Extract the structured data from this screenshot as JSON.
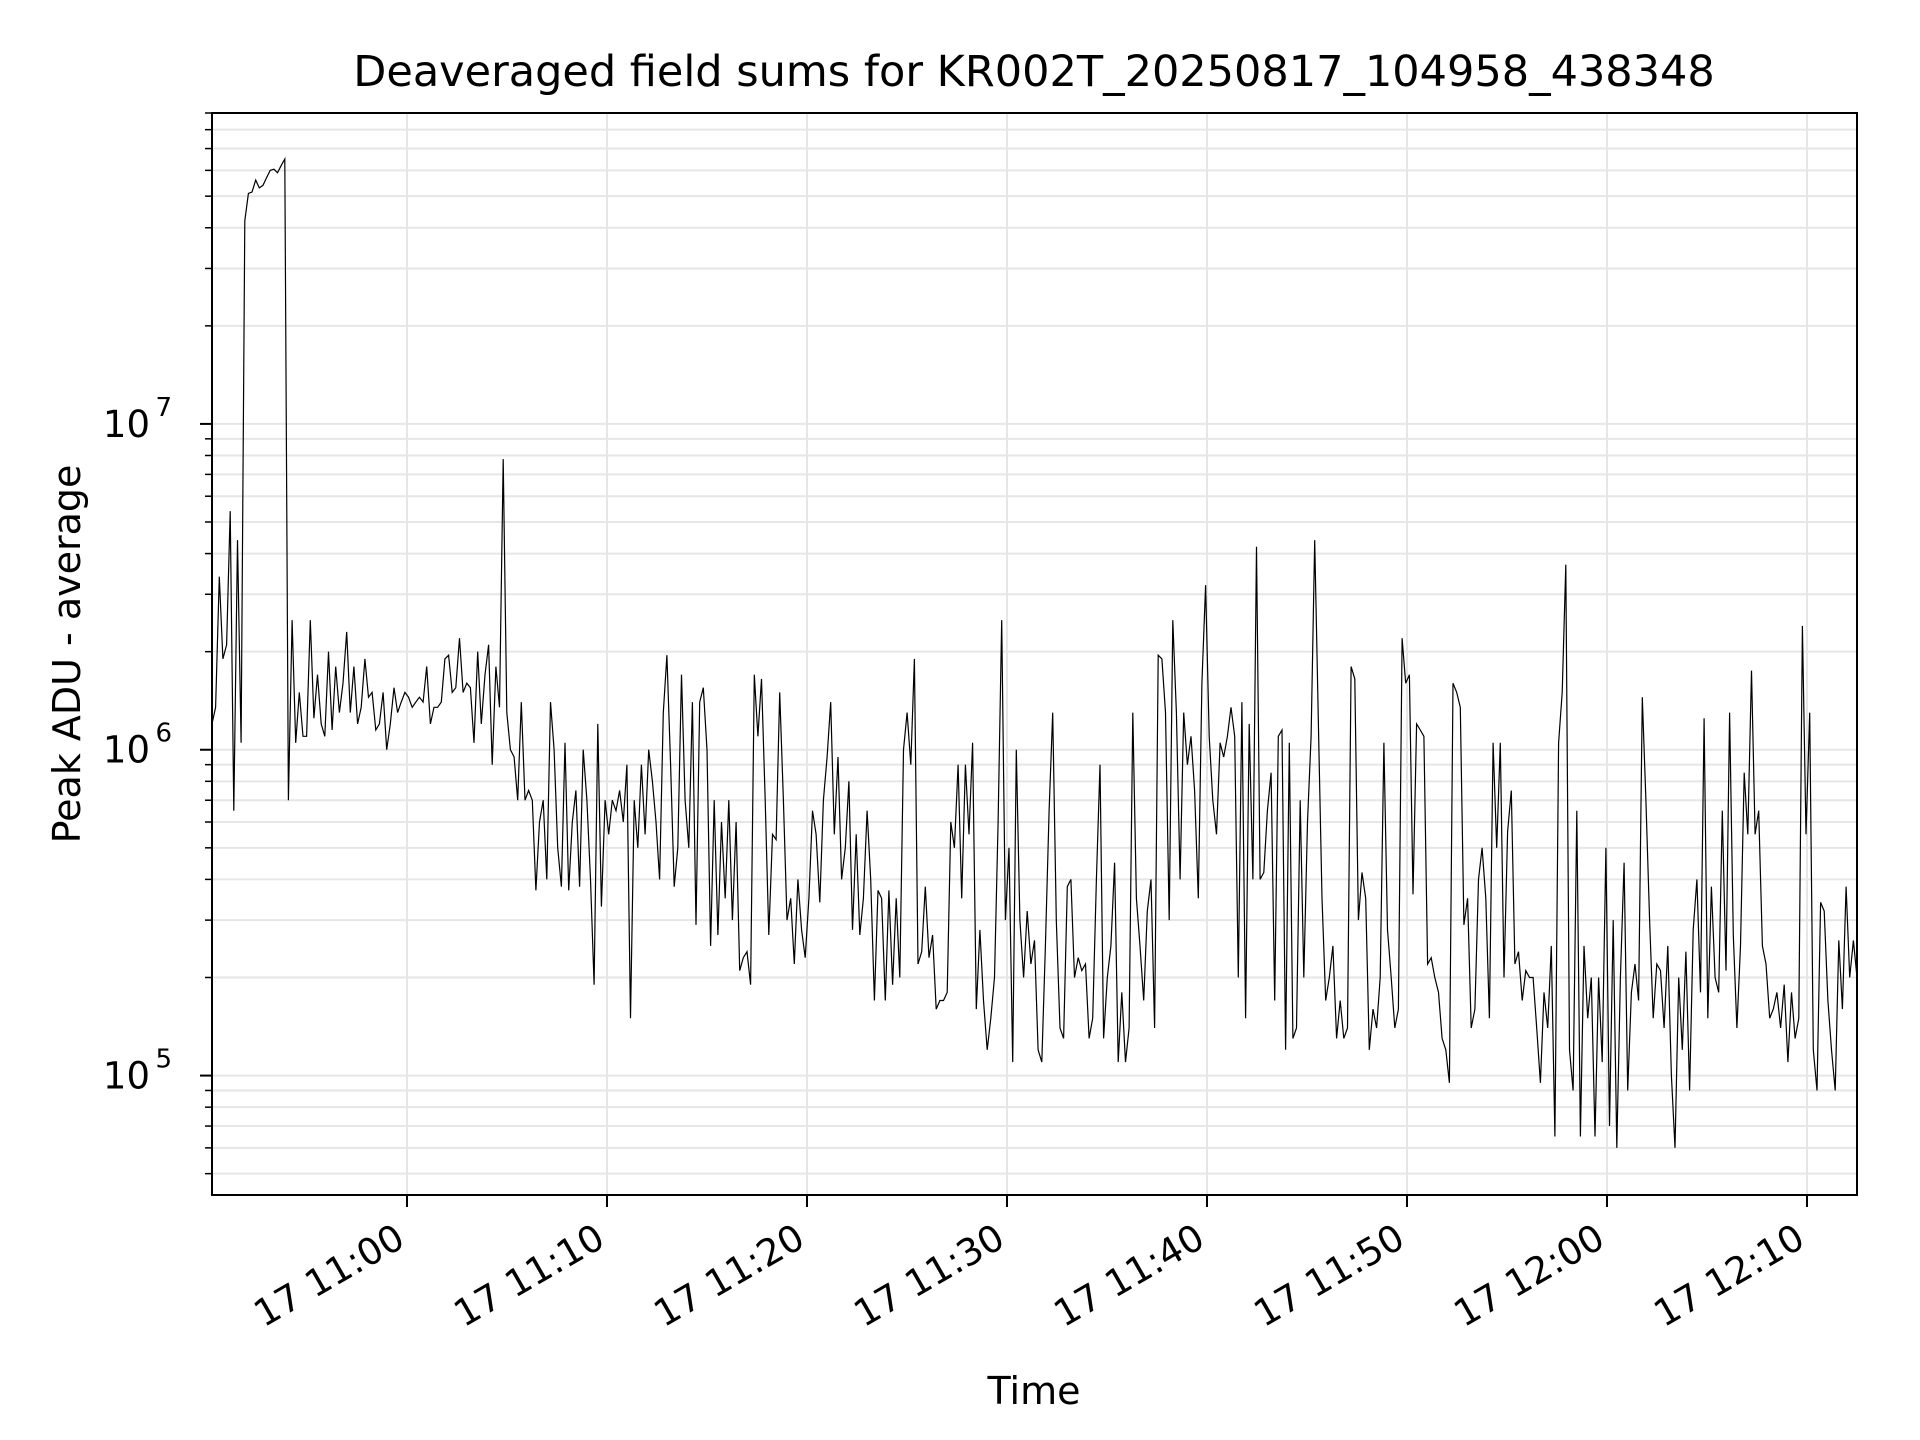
{
  "chart_data": {
    "type": "line",
    "title": "Deaveraged field sums for KR002T_20250817_104958_438348",
    "xlabel": "Time",
    "ylabel": "Peak ADU - average",
    "x_axis": {
      "kind": "time",
      "range": [
        "2025-08-17 10:50:15",
        "2025-08-17 12:12:30"
      ],
      "tick_labels": [
        "17 11:00",
        "17 11:10",
        "17 11:20",
        "17 11:30",
        "17 11:40",
        "17 11:50",
        "17 12:00",
        "17 12:10"
      ]
    },
    "y_axis": {
      "scale": "log",
      "range": [
        43000,
        90000000
      ],
      "tick_labels": [
        {
          "mantissa": "10",
          "exponent": "5",
          "value": 100000
        },
        {
          "mantissa": "10",
          "exponent": "6",
          "value": 1000000
        },
        {
          "mantissa": "10",
          "exponent": "7",
          "value": 10000000
        }
      ]
    },
    "grid": true,
    "legend": "none",
    "line_color": "#000000",
    "series": [
      {
        "x_start": "2025-08-17 10:50:15",
        "x_end": "2025-08-17 12:12:30",
        "values": [
          1200000,
          1350000,
          3400000,
          1900000,
          2100000,
          5400000,
          650000,
          4400000,
          1050000,
          42000000,
          51000000,
          51500000,
          56000000,
          53000000,
          54000000,
          57000000,
          60000000,
          60500000,
          59000000,
          62000000,
          65000000,
          700000,
          2500000,
          1050000,
          1500000,
          1100000,
          1100000,
          2500000,
          1250000,
          1700000,
          1200000,
          1100000,
          2000000,
          1150000,
          1800000,
          1300000,
          1600000,
          2300000,
          1300000,
          1800000,
          1200000,
          1350000,
          1900000,
          1450000,
          1500000,
          1150000,
          1200000,
          1500000,
          1000000,
          1200000,
          1550000,
          1300000,
          1400000,
          1500000,
          1450000,
          1350000,
          1400000,
          1450000,
          1400000,
          1800000,
          1200000,
          1350000,
          1350000,
          1400000,
          1900000,
          1950000,
          1500000,
          1550000,
          2200000,
          1500000,
          1600000,
          1550000,
          1050000,
          2000000,
          1200000,
          1700000,
          2100000,
          900000,
          1800000,
          1350000,
          7800000,
          1300000,
          1000000,
          950000,
          700000,
          1400000,
          700000,
          750000,
          700000,
          370000,
          600000,
          700000,
          400000,
          1400000,
          1000000,
          500000,
          380000,
          1050000,
          370000,
          600000,
          750000,
          380000,
          1000000,
          700000,
          400000,
          190000,
          1200000,
          330000,
          700000,
          550000,
          700000,
          650000,
          750000,
          600000,
          900000,
          150000,
          700000,
          500000,
          900000,
          550000,
          1000000,
          800000,
          600000,
          400000,
          1300000,
          1950000,
          900000,
          380000,
          500000,
          1700000,
          700000,
          500000,
          1400000,
          290000,
          1400000,
          1550000,
          1000000,
          250000,
          700000,
          270000,
          600000,
          350000,
          700000,
          300000,
          600000,
          210000,
          230000,
          240000,
          190000,
          1700000,
          1100000,
          1650000,
          700000,
          270000,
          550000,
          530000,
          1500000,
          700000,
          300000,
          350000,
          220000,
          400000,
          280000,
          230000,
          350000,
          650000,
          550000,
          340000,
          700000,
          950000,
          1400000,
          550000,
          950000,
          400000,
          500000,
          800000,
          280000,
          550000,
          270000,
          350000,
          650000,
          400000,
          170000,
          370000,
          350000,
          170000,
          370000,
          190000,
          350000,
          200000,
          1000000,
          1300000,
          900000,
          1900000,
          220000,
          240000,
          380000,
          230000,
          270000,
          160000,
          170000,
          170000,
          180000,
          600000,
          500000,
          900000,
          350000,
          900000,
          550000,
          1050000,
          160000,
          280000,
          170000,
          120000,
          150000,
          200000,
          600000,
          2500000,
          300000,
          500000,
          110000,
          1000000,
          300000,
          200000,
          320000,
          220000,
          260000,
          120000,
          110000,
          250000,
          650000,
          1300000,
          300000,
          140000,
          130000,
          380000,
          400000,
          200000,
          230000,
          210000,
          220000,
          130000,
          150000,
          400000,
          900000,
          130000,
          200000,
          250000,
          450000,
          110000,
          180000,
          110000,
          140000,
          1300000,
          350000,
          250000,
          170000,
          320000,
          400000,
          140000,
          1950000,
          1900000,
          1300000,
          300000,
          2500000,
          1300000,
          400000,
          1300000,
          900000,
          1100000,
          750000,
          350000,
          1600000,
          3200000,
          1100000,
          700000,
          550000,
          1050000,
          950000,
          1100000,
          1350000,
          1100000,
          200000,
          1400000,
          150000,
          1200000,
          400000,
          4200000,
          400000,
          420000,
          650000,
          850000,
          170000,
          1100000,
          1150000,
          120000,
          1050000,
          130000,
          140000,
          700000,
          200000,
          600000,
          1100000,
          4400000,
          1200000,
          350000,
          170000,
          200000,
          250000,
          130000,
          170000,
          130000,
          140000,
          1800000,
          1650000,
          300000,
          420000,
          350000,
          120000,
          160000,
          140000,
          200000,
          1050000,
          280000,
          200000,
          140000,
          160000,
          2200000,
          1600000,
          1700000,
          360000,
          1200000,
          1150000,
          1100000,
          220000,
          230000,
          200000,
          180000,
          130000,
          120000,
          95000,
          1600000,
          1500000,
          1350000,
          290000,
          350000,
          140000,
          160000,
          400000,
          500000,
          350000,
          150000,
          1050000,
          500000,
          1050000,
          200000,
          560000,
          750000,
          220000,
          240000,
          170000,
          210000,
          200000,
          200000,
          140000,
          95000,
          180000,
          140000,
          250000,
          65000,
          1050000,
          1500000,
          3700000,
          120000,
          90000,
          650000,
          65000,
          250000,
          150000,
          200000,
          65000,
          200000,
          110000,
          500000,
          70000,
          300000,
          60000,
          200000,
          450000,
          90000,
          180000,
          220000,
          170000,
          1450000,
          700000,
          300000,
          150000,
          220000,
          210000,
          140000,
          250000,
          100000,
          60000,
          200000,
          120000,
          240000,
          90000,
          280000,
          400000,
          180000,
          1250000,
          150000,
          380000,
          200000,
          180000,
          650000,
          210000,
          1300000,
          270000,
          140000,
          250000,
          850000,
          550000,
          1750000,
          550000,
          650000,
          250000,
          220000,
          150000,
          160000,
          180000,
          140000,
          190000,
          110000,
          180000,
          130000,
          150000,
          2400000,
          550000,
          1300000,
          120000,
          90000,
          340000,
          320000,
          170000,
          120000,
          90000,
          260000,
          160000,
          380000,
          200000,
          260000,
          200000
        ]
      }
    ]
  }
}
